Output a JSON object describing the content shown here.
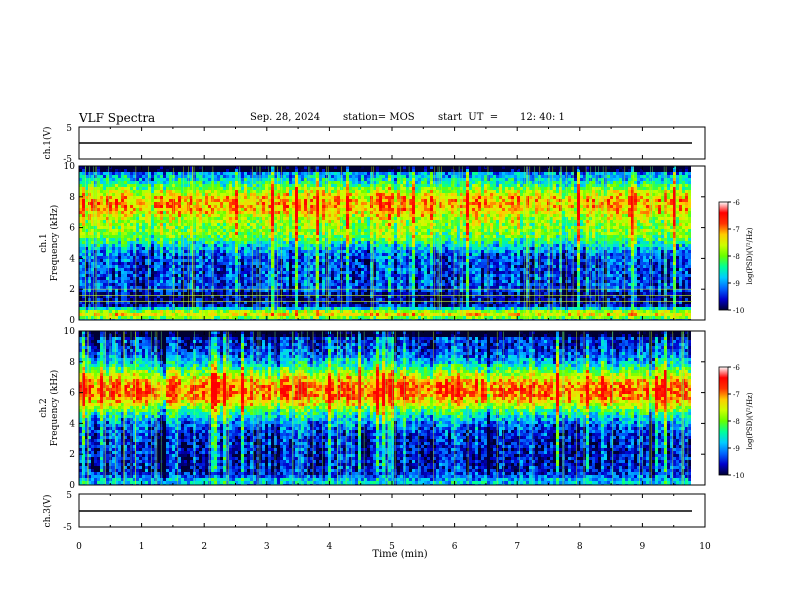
{
  "header": {
    "title": "VLF Spectra",
    "date": "Sep. 28, 2024",
    "station": "station= MOS",
    "start_label": "start  UT  =",
    "start_time": "12: 40: 1"
  },
  "xaxis": {
    "label": "Time  (min)",
    "range": [
      0,
      10
    ],
    "ticks": [
      "0",
      "1",
      "2",
      "3",
      "4",
      "5",
      "6",
      "7",
      "8",
      "9",
      "10"
    ]
  },
  "waveform_panels": [
    {
      "id": "ch1",
      "ylabel": "ch.1(V)",
      "ylim": [
        -5,
        5
      ],
      "ticks": [
        "5",
        "-5"
      ],
      "baseline": 0
    },
    {
      "id": "ch3",
      "ylabel": "ch.3(V)",
      "ylim": [
        -5,
        5
      ],
      "ticks": [
        "5",
        "-5"
      ],
      "baseline": 0
    }
  ],
  "spectrogram_panels": [
    {
      "id": "ch1",
      "ylabel_line1": "ch.1",
      "ylabel_line2": "Frequency (kHz)",
      "ylim": [
        0,
        10
      ],
      "ticks": [
        "0",
        "2",
        "4",
        "6",
        "8",
        "10"
      ],
      "band_peaks_khz": [
        0.5,
        7.5
      ],
      "profile": "ch1"
    },
    {
      "id": "ch2",
      "ylabel_line1": "ch.2",
      "ylabel_line2": "Frequency (kHz)",
      "ylim": [
        0,
        10
      ],
      "ticks": [
        "0",
        "2",
        "4",
        "6",
        "8",
        "10"
      ],
      "band_peaks_khz": [
        6.2
      ],
      "profile": "ch2"
    }
  ],
  "colorbar": {
    "label": "log(PSD)(V²/Hz)",
    "range": [
      -10,
      -6
    ],
    "ticks": [
      "-6",
      "-7",
      "-8",
      "-9",
      "-10"
    ],
    "colors": [
      "#000033",
      "#0000cc",
      "#0066ff",
      "#00ccff",
      "#00ff99",
      "#66ff00",
      "#ccff00",
      "#ffcc00",
      "#ff3300",
      "#ff0000",
      "#ffffff"
    ]
  },
  "chart_data": [
    {
      "type": "line",
      "title": "VLF Spectra",
      "ylabel": "ch.1(V)",
      "xlabel": "Time  (min)",
      "xlim": [
        0,
        10
      ],
      "ylim": [
        -5,
        5
      ],
      "x": [
        0,
        10
      ],
      "series": [
        {
          "values": [
            0,
            0
          ]
        }
      ]
    },
    {
      "type": "heatmap",
      "ylabel": "Frequency (kHz)",
      "xlim": [
        0,
        10
      ],
      "ylim": [
        0,
        10
      ],
      "colorbar_range": [
        -10,
        -6
      ],
      "description_values": {
        "dominant_band_khz": [
          6,
          9
        ],
        "secondary_band_khz": [
          0,
          1
        ]
      }
    },
    {
      "type": "heatmap",
      "ylabel": "Frequency (kHz)",
      "xlim": [
        0,
        10
      ],
      "ylim": [
        0,
        10
      ],
      "colorbar_range": [
        -10,
        -6
      ],
      "description_values": {
        "dominant_band_khz": [
          4.5,
          8
        ]
      }
    },
    {
      "type": "line",
      "ylabel": "ch.3(V)",
      "xlabel": "Time  (min)",
      "xlim": [
        0,
        10
      ],
      "ylim": [
        -5,
        5
      ],
      "x": [
        0,
        10
      ],
      "series": [
        {
          "values": [
            0,
            0
          ]
        }
      ]
    }
  ]
}
